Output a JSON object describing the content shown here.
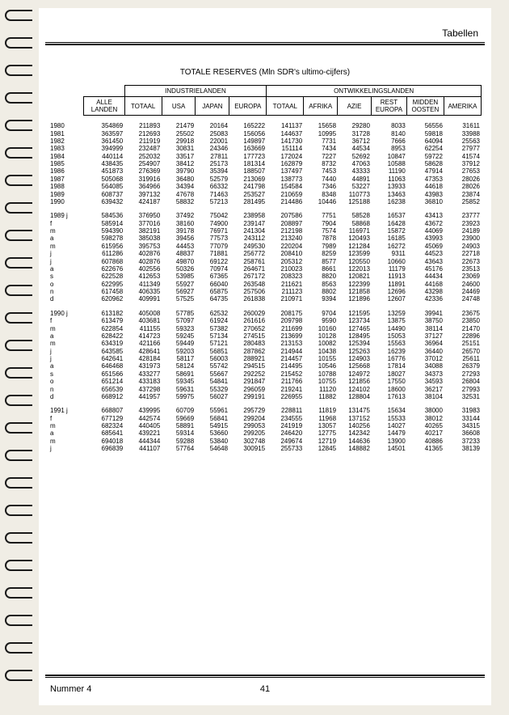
{
  "header_label": "Tabellen",
  "title": "TOTALE RESERVES (Mln SDR's ultimo-cijfers)",
  "footer_left": "Nummer 4",
  "footer_page": "41",
  "group_headers": {
    "industrial": "INDUSTRIELANDEN",
    "developing": "ONTWIKKELINGSLANDEN"
  },
  "columns": [
    "ALLE LANDEN",
    "TOTAAL",
    "USA",
    "JAPAN",
    "EUROPA",
    "TOTAAL",
    "AFRIKA",
    "AZIE",
    "REST EUROPA",
    "MIDDEN OOSTEN",
    "AMERIKA"
  ],
  "sections": [
    {
      "rows": [
        {
          "label": "1980",
          "v": [
            "354869",
            "211893",
            "21479",
            "20164",
            "165222",
            "141137",
            "15658",
            "29280",
            "8033",
            "56556",
            "31611"
          ]
        },
        {
          "label": "1981",
          "v": [
            "363597",
            "212693",
            "25502",
            "25083",
            "156056",
            "144637",
            "10995",
            "31728",
            "8140",
            "59818",
            "33988"
          ]
        },
        {
          "label": "1982",
          "v": [
            "361450",
            "211919",
            "29918",
            "22001",
            "149897",
            "141730",
            "7731",
            "36712",
            "7666",
            "64094",
            "25563"
          ]
        },
        {
          "label": "1983",
          "v": [
            "394999",
            "232487",
            "30831",
            "24346",
            "163669",
            "151114",
            "7434",
            "44534",
            "8953",
            "62254",
            "27977"
          ]
        },
        {
          "label": "1984",
          "v": [
            "440114",
            "252032",
            "33517",
            "27811",
            "177723",
            "172024",
            "7227",
            "52692",
            "10847",
            "59722",
            "41574"
          ]
        },
        {
          "label": "1985",
          "v": [
            "438435",
            "254907",
            "38412",
            "25173",
            "181314",
            "162879",
            "8732",
            "47063",
            "10588",
            "58628",
            "37912"
          ]
        },
        {
          "label": "1986",
          "v": [
            "451873",
            "276369",
            "39790",
            "35394",
            "188507",
            "137497",
            "7453",
            "43333",
            "11190",
            "47914",
            "27653"
          ]
        },
        {
          "label": "1987",
          "v": [
            "505068",
            "319916",
            "36480",
            "52579",
            "213069",
            "138773",
            "7440",
            "44891",
            "11063",
            "47353",
            "28026"
          ]
        },
        {
          "label": "1988",
          "v": [
            "564085",
            "364966",
            "34394",
            "66332",
            "241798",
            "154584",
            "7346",
            "53227",
            "13933",
            "44618",
            "28026"
          ]
        },
        {
          "label": "1989",
          "v": [
            "608737",
            "397132",
            "47678",
            "71463",
            "253527",
            "210659",
            "8348",
            "110773",
            "13463",
            "43983",
            "23874"
          ]
        },
        {
          "label": "1990",
          "v": [
            "639432",
            "424187",
            "58832",
            "57213",
            "281495",
            "214486",
            "10446",
            "125188",
            "16238",
            "36810",
            "25852"
          ]
        }
      ]
    },
    {
      "rows": [
        {
          "label": "1989 j",
          "v": [
            "584536",
            "376950",
            "37492",
            "75042",
            "238958",
            "207586",
            "7751",
            "58528",
            "16537",
            "43413",
            "23777"
          ]
        },
        {
          "label": "f",
          "v": [
            "585914",
            "377016",
            "38160",
            "74900",
            "239147",
            "208897",
            "7904",
            "58868",
            "16428",
            "43672",
            "23923"
          ]
        },
        {
          "label": "m",
          "v": [
            "594390",
            "382191",
            "39178",
            "76971",
            "241304",
            "212198",
            "7574",
            "116971",
            "15872",
            "44069",
            "24189"
          ]
        },
        {
          "label": "a",
          "v": [
            "598278",
            "385038",
            "39456",
            "77573",
            "243112",
            "213240",
            "7878",
            "120493",
            "16185",
            "43993",
            "23900"
          ]
        },
        {
          "label": "m",
          "v": [
            "615956",
            "395753",
            "44453",
            "77079",
            "249530",
            "220204",
            "7989",
            "121284",
            "16272",
            "45069",
            "24903"
          ]
        },
        {
          "label": "j",
          "v": [
            "611286",
            "402876",
            "48837",
            "71881",
            "256772",
            "208410",
            "8259",
            "123599",
            "9311",
            "44523",
            "22718"
          ]
        },
        {
          "label": "j",
          "v": [
            "607868",
            "402876",
            "49870",
            "69122",
            "258761",
            "205312",
            "8577",
            "120550",
            "10660",
            "43643",
            "22673"
          ]
        },
        {
          "label": "a",
          "v": [
            "622676",
            "402556",
            "50326",
            "70974",
            "264671",
            "210023",
            "8661",
            "122013",
            "11179",
            "45176",
            "23513"
          ]
        },
        {
          "label": "s",
          "v": [
            "622528",
            "412653",
            "53985",
            "67365",
            "267172",
            "208323",
            "8820",
            "120821",
            "11913",
            "44434",
            "23069"
          ]
        },
        {
          "label": "o",
          "v": [
            "622995",
            "411349",
            "55927",
            "66040",
            "263548",
            "211621",
            "8563",
            "122399",
            "11891",
            "44168",
            "24600"
          ]
        },
        {
          "label": "n",
          "v": [
            "617458",
            "406335",
            "56927",
            "65875",
            "257506",
            "211123",
            "8802",
            "121858",
            "12696",
            "43298",
            "24469"
          ]
        },
        {
          "label": "d",
          "v": [
            "620962",
            "409991",
            "57525",
            "64735",
            "261838",
            "210971",
            "9394",
            "121896",
            "12607",
            "42336",
            "24748"
          ]
        }
      ]
    },
    {
      "rows": [
        {
          "label": "1990 j",
          "v": [
            "613182",
            "405008",
            "57785",
            "62532",
            "260029",
            "208175",
            "9704",
            "121595",
            "13259",
            "39941",
            "23675"
          ]
        },
        {
          "label": "f",
          "v": [
            "613479",
            "403681",
            "57097",
            "61924",
            "261616",
            "209798",
            "9590",
            "123734",
            "13875",
            "38750",
            "23850"
          ]
        },
        {
          "label": "m",
          "v": [
            "622854",
            "411155",
            "59323",
            "57382",
            "270652",
            "211699",
            "10160",
            "127465",
            "14490",
            "38114",
            "21470"
          ]
        },
        {
          "label": "a",
          "v": [
            "628422",
            "414723",
            "59245",
            "57134",
            "274515",
            "213699",
            "10128",
            "128495",
            "15053",
            "37127",
            "22896"
          ]
        },
        {
          "label": "m",
          "v": [
            "634319",
            "421166",
            "59449",
            "57121",
            "280483",
            "213153",
            "10082",
            "125394",
            "15563",
            "36964",
            "25151"
          ]
        },
        {
          "label": "j",
          "v": [
            "643585",
            "428641",
            "59203",
            "56851",
            "287862",
            "214944",
            "10438",
            "125263",
            "16239",
            "36440",
            "26570"
          ]
        },
        {
          "label": "j",
          "v": [
            "642641",
            "428184",
            "58117",
            "56003",
            "288921",
            "214457",
            "10155",
            "124903",
            "16776",
            "37012",
            "25611"
          ]
        },
        {
          "label": "a",
          "v": [
            "646468",
            "431973",
            "58124",
            "55742",
            "294515",
            "214495",
            "10546",
            "125668",
            "17814",
            "34088",
            "26379"
          ]
        },
        {
          "label": "s",
          "v": [
            "651566",
            "433277",
            "58691",
            "55667",
            "292252",
            "215452",
            "10788",
            "124972",
            "18027",
            "34373",
            "27293"
          ]
        },
        {
          "label": "o",
          "v": [
            "651214",
            "433183",
            "59345",
            "54841",
            "291847",
            "211766",
            "10755",
            "121856",
            "17550",
            "34593",
            "26804"
          ]
        },
        {
          "label": "n",
          "v": [
            "656539",
            "437298",
            "59631",
            "55329",
            "296059",
            "219241",
            "11120",
            "124102",
            "18600",
            "36217",
            "27993"
          ]
        },
        {
          "label": "d",
          "v": [
            "668912",
            "441957",
            "59975",
            "56027",
            "299191",
            "226955",
            "11882",
            "128804",
            "17613",
            "38104",
            "32531"
          ]
        }
      ]
    },
    {
      "rows": [
        {
          "label": "1991 j",
          "v": [
            "668807",
            "439995",
            "60709",
            "55961",
            "295729",
            "228811",
            "11819",
            "131475",
            "15634",
            "38000",
            "31983"
          ]
        },
        {
          "label": "f",
          "v": [
            "677129",
            "442574",
            "59669",
            "56841",
            "299204",
            "234555",
            "11968",
            "137152",
            "15533",
            "38012",
            "33144"
          ]
        },
        {
          "label": "m",
          "v": [
            "682324",
            "440405",
            "58891",
            "54915",
            "299053",
            "241919",
            "13057",
            "140256",
            "14027",
            "40265",
            "34315"
          ]
        },
        {
          "label": "a",
          "v": [
            "685641",
            "439221",
            "59314",
            "53660",
            "299205",
            "246420",
            "12775",
            "142342",
            "14479",
            "40217",
            "36608"
          ]
        },
        {
          "label": "m",
          "v": [
            "694018",
            "444344",
            "59288",
            "53840",
            "302748",
            "249674",
            "12719",
            "144636",
            "13900",
            "40886",
            "37233"
          ]
        },
        {
          "label": "j",
          "v": [
            "696839",
            "441107",
            "57764",
            "54648",
            "300915",
            "255733",
            "12845",
            "148882",
            "14501",
            "41365",
            "38139"
          ]
        }
      ]
    }
  ]
}
